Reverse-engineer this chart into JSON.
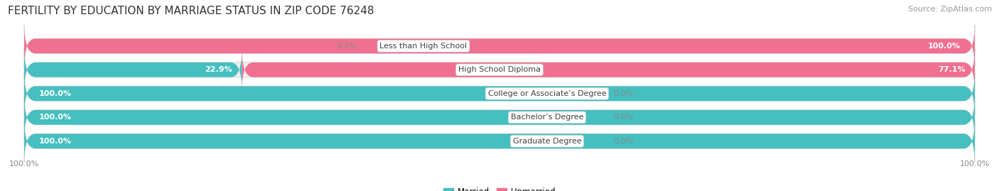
{
  "title": "FERTILITY BY EDUCATION BY MARRIAGE STATUS IN ZIP CODE 76248",
  "source": "Source: ZipAtlas.com",
  "categories": [
    "Less than High School",
    "High School Diploma",
    "College or Associate’s Degree",
    "Bachelor’s Degree",
    "Graduate Degree"
  ],
  "married": [
    0.0,
    22.9,
    100.0,
    100.0,
    100.0
  ],
  "unmarried": [
    100.0,
    77.1,
    0.0,
    0.0,
    0.0
  ],
  "married_color": "#45BFBF",
  "unmarried_color": "#F07090",
  "unmarried_color_light": "#F4A0B8",
  "bar_bg_color": "#EFEFEF",
  "bar_border_color": "#D8D8D8",
  "title_fontsize": 11,
  "source_fontsize": 8,
  "label_fontsize": 8,
  "cat_fontsize": 8,
  "legend_fontsize": 8.5,
  "figsize": [
    14.06,
    2.69
  ],
  "dpi": 100
}
